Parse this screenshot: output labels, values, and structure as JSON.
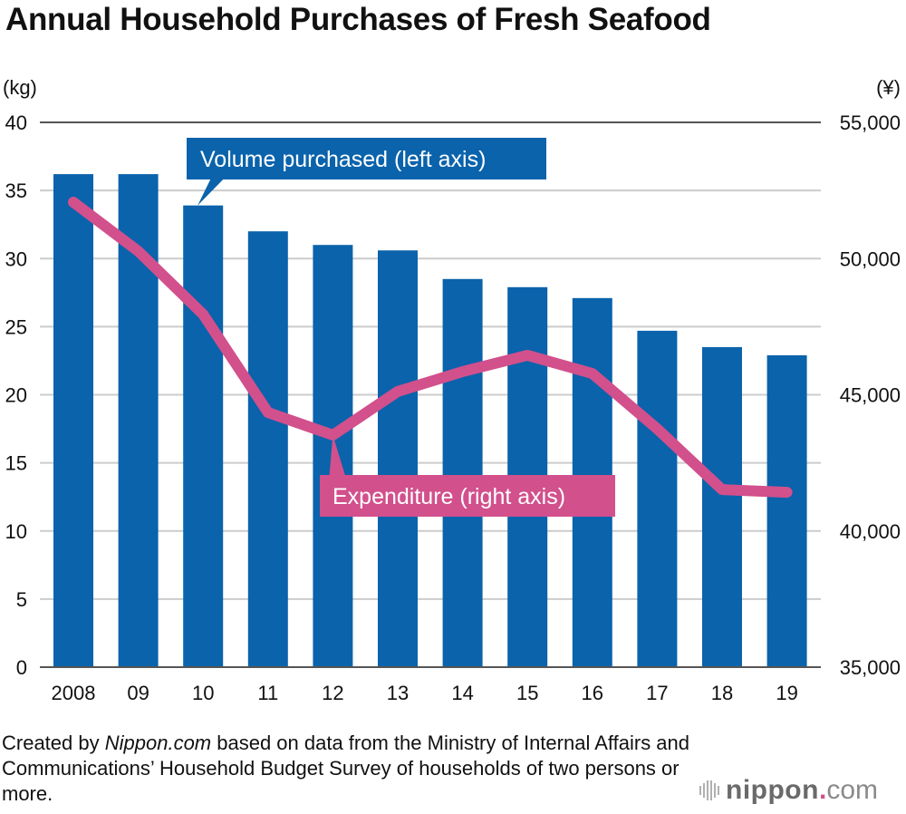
{
  "title": "Annual Household Purchases of Fresh Seafood",
  "left_unit": "(kg)",
  "right_unit": "(¥)",
  "caption": {
    "part1": "Created by ",
    "italic": "Nippon.com",
    "part2": " based on data from the Ministry of Internal Affairs and Communications’ Household Budget Survey of households of two persons or more."
  },
  "logo": {
    "word": "nippon",
    "dot": ".",
    "tld": "com"
  },
  "colors": {
    "bar": "#0a63ab",
    "line": "#d2508c",
    "grid": "#cccccc",
    "axis": "#555555"
  },
  "chart_data": {
    "type": "bar+line",
    "title": "Annual Household Purchases of Fresh Seafood",
    "categories": [
      "2008",
      "09",
      "10",
      "11",
      "12",
      "13",
      "14",
      "15",
      "16",
      "17",
      "18",
      "19"
    ],
    "series": [
      {
        "name": "Volume purchased (left axis)",
        "type": "bar",
        "axis": "left",
        "values": [
          36.2,
          36.2,
          33.9,
          32.0,
          31.0,
          30.6,
          28.5,
          27.9,
          27.1,
          24.7,
          23.5,
          22.9
        ]
      },
      {
        "name": "Expenditure (right axis)",
        "type": "line",
        "axis": "right",
        "values": [
          52070,
          50270,
          47950,
          44350,
          43520,
          45120,
          45850,
          46450,
          45780,
          43750,
          41520,
          41420
        ]
      }
    ],
    "left_axis": {
      "label": "(kg)",
      "range": [
        0,
        40
      ],
      "ticks": [
        "0",
        "5",
        "10",
        "15",
        "20",
        "25",
        "30",
        "35",
        "40"
      ]
    },
    "right_axis": {
      "label": "(¥)",
      "range": [
        35000,
        55000
      ],
      "ticks": [
        "35,000",
        "40,000",
        "45,000",
        "50,000",
        "55,000"
      ]
    },
    "annotations": [
      {
        "text": "Volume purchased (left axis)",
        "points_to": "10"
      },
      {
        "text": "Expenditure (right axis)",
        "points_to": "12"
      }
    ],
    "grid": true,
    "legend": "none"
  }
}
